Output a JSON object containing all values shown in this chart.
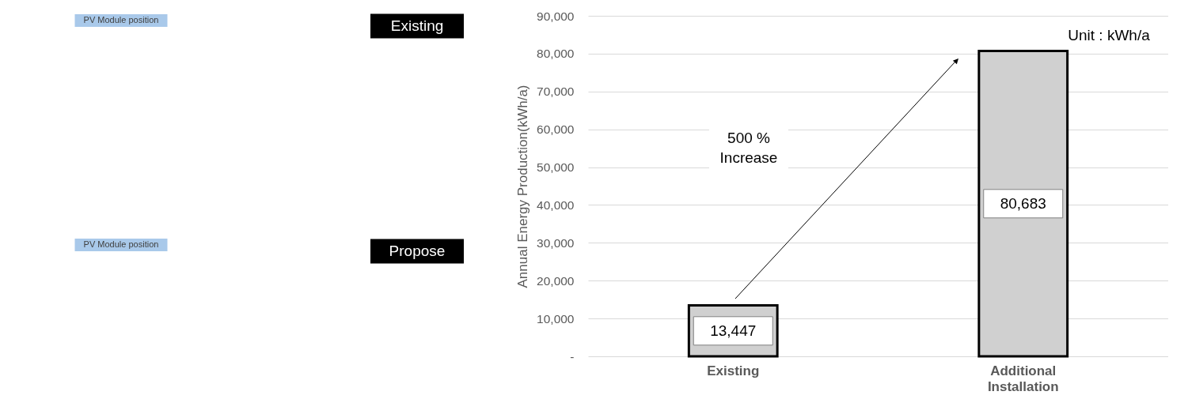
{
  "chart_data": [
    {
      "type": "other",
      "annotations": [
        "PV Module position",
        "Existing",
        "PV Module position",
        "Propose"
      ]
    },
    {
      "type": "bar",
      "categories": [
        "Existing",
        "Additional Installation"
      ],
      "values": [
        13447,
        80683
      ],
      "value_labels": [
        "13,447",
        "80,683"
      ],
      "color": "#d0d0d0",
      "ylabel": "Annual Energy Production(kWh/a)",
      "ylim": [
        0,
        90000
      ],
      "yticks": [
        {
          "value": 0,
          "label": "-"
        },
        {
          "value": 10000,
          "label": "10,000"
        },
        {
          "value": 20000,
          "label": "20,000"
        },
        {
          "value": 30000,
          "label": "30,000"
        },
        {
          "value": 40000,
          "label": "40,000"
        },
        {
          "value": 50000,
          "label": "50,000"
        },
        {
          "value": 60000,
          "label": "60,000"
        },
        {
          "value": 70000,
          "label": "70,000"
        },
        {
          "value": 80000,
          "label": "80,000"
        },
        {
          "value": 90000,
          "label": "90,000"
        }
      ],
      "grid": "y",
      "annotations": [
        "500 % Increase",
        "Unit : kWh/a"
      ]
    }
  ]
}
